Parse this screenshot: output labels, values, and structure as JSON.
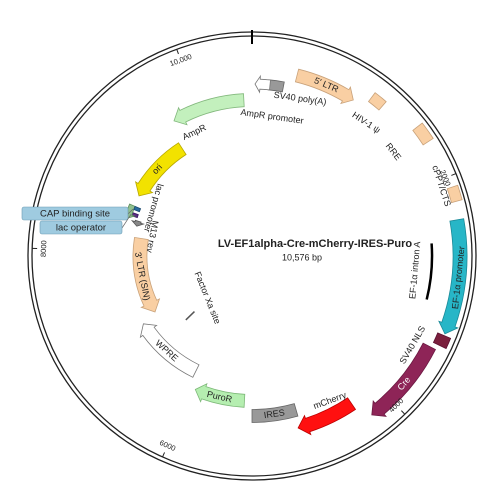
{
  "title": "LV-EF1alpha-Cre-mCherry-IRES-Puro",
  "size": "10,576 bp",
  "ticks": [
    "2000",
    "4000",
    "6000",
    "8000",
    "10,000"
  ],
  "features": [
    "SV40 poly(A)",
    "AmpR promoter",
    "5' LTR",
    "HIV-1 ψ",
    "RRE",
    "cPPT/CTS",
    "EF-1α promoter",
    "EF-1α intron A",
    "SV40 NLS",
    "Cre",
    "mCherry",
    "IRES",
    "PuroR",
    "WPRE",
    "Factor Xa site",
    "3' LTR (SIN)",
    "M13 rev",
    "lac operator",
    "lac promoter",
    "CAP binding site",
    "ori",
    "AmpR"
  ]
}
